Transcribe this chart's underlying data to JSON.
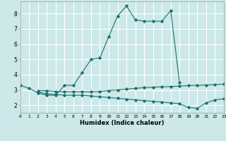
{
  "title": "",
  "xlabel": "Humidex (Indice chaleur)",
  "bg_color": "#cce8e8",
  "grid_color": "#ffffff",
  "line_color": "#1a7070",
  "x_values": [
    0,
    1,
    2,
    3,
    4,
    5,
    6,
    7,
    8,
    9,
    10,
    11,
    12,
    13,
    14,
    15,
    16,
    17,
    18,
    19,
    20,
    21,
    22,
    23
  ],
  "line1_y": [
    3.3,
    3.1,
    2.8,
    2.65,
    2.65,
    3.3,
    3.3,
    4.15,
    5.0,
    5.1,
    6.5,
    7.85,
    8.5,
    7.6,
    7.5,
    7.5,
    7.5,
    8.2,
    3.5,
    null,
    null,
    null,
    null,
    null
  ],
  "line2_y": [
    null,
    null,
    2.85,
    2.75,
    2.7,
    2.65,
    2.65,
    2.65,
    2.6,
    2.55,
    2.5,
    2.45,
    2.4,
    2.35,
    2.3,
    2.25,
    2.2,
    2.15,
    2.1,
    1.85,
    1.8,
    2.15,
    2.35,
    2.42
  ],
  "line3_y": [
    null,
    null,
    2.95,
    2.95,
    2.9,
    2.88,
    2.88,
    2.88,
    2.88,
    2.9,
    2.95,
    3.0,
    3.05,
    3.1,
    3.15,
    3.18,
    3.2,
    3.22,
    3.25,
    3.28,
    3.3,
    3.32,
    3.35,
    3.38
  ],
  "xlim": [
    0,
    23
  ],
  "ylim": [
    1.5,
    8.8
  ],
  "yticks": [
    2,
    3,
    4,
    5,
    6,
    7,
    8
  ],
  "xticks": [
    0,
    1,
    2,
    3,
    4,
    5,
    6,
    7,
    8,
    9,
    10,
    11,
    12,
    13,
    14,
    15,
    16,
    17,
    18,
    19,
    20,
    21,
    22,
    23
  ]
}
